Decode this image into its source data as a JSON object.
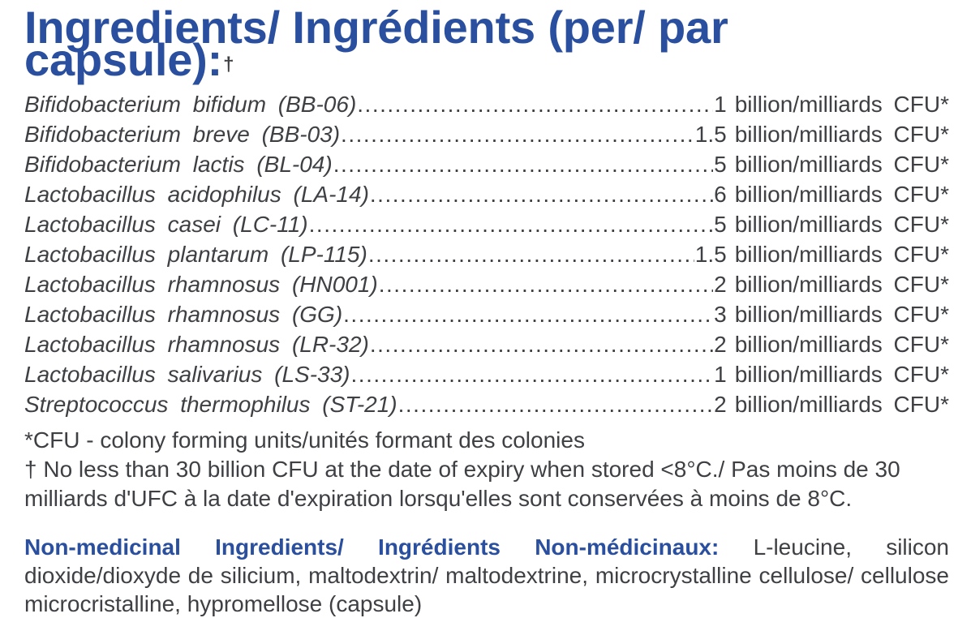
{
  "colors": {
    "accent_blue": "#2a4f9e",
    "body_text": "#3e4044",
    "background": "#ffffff"
  },
  "header": {
    "label": "Ingredients/ Ingrédients (per/ par capsule):",
    "dagger": "†"
  },
  "ingredients": [
    {
      "name": "Bifidobacterium bifidum (BB-06)",
      "amount": "1",
      "unit": "billion/milliards CFU*"
    },
    {
      "name": "Bifidobacterium breve (BB-03)",
      "amount": "1.5",
      "unit": "billion/milliards CFU*"
    },
    {
      "name": "Bifidobacterium lactis (BL-04)",
      "amount": "5",
      "unit": "billion/milliards CFU*"
    },
    {
      "name": "Lactobacillus acidophilus (LA-14)",
      "amount": "6",
      "unit": "billion/milliards CFU*"
    },
    {
      "name": "Lactobacillus casei (LC-11)",
      "amount": "5",
      "unit": "billion/milliards CFU*"
    },
    {
      "name": "Lactobacillus plantarum (LP-115)",
      "amount": "1.5",
      "unit": "billion/milliards CFU*"
    },
    {
      "name": "Lactobacillus rhamnosus (HN001)",
      "amount": "2",
      "unit": "billion/milliards CFU*"
    },
    {
      "name": "Lactobacillus rhamnosus (GG)",
      "amount": "3",
      "unit": "billion/milliards CFU*"
    },
    {
      "name": "Lactobacillus rhamnosus (LR-32)",
      "amount": "2",
      "unit": "billion/milliards CFU*"
    },
    {
      "name": "Lactobacillus salivarius (LS-33)",
      "amount": "1",
      "unit": "billion/milliards CFU*"
    },
    {
      "name": "Streptococcus thermophilus (ST-21)",
      "amount": "2",
      "unit": "billion/milliards CFU*"
    }
  ],
  "footnotes": {
    "cfu_note": "*CFU - colony forming units/unités formant des colonies",
    "storage_note": "† No less than 30 billion CFU at the date of expiry when stored <8°C./ Pas moins de 30 milliards d'UFC à la date d'expiration lorsqu'elles sont conservées à moins de 8°C."
  },
  "non_medicinal": {
    "heading": "Non-medicinal Ingredients/ Ingrédients Non-médicinaux:",
    "text": "L-leucine, silicon dioxide/dioxyde de silicium, maltodextrin/ maltodextrine, microcrystalline cellulose/ cellulose microcristalline, hypromellose (capsule)"
  }
}
